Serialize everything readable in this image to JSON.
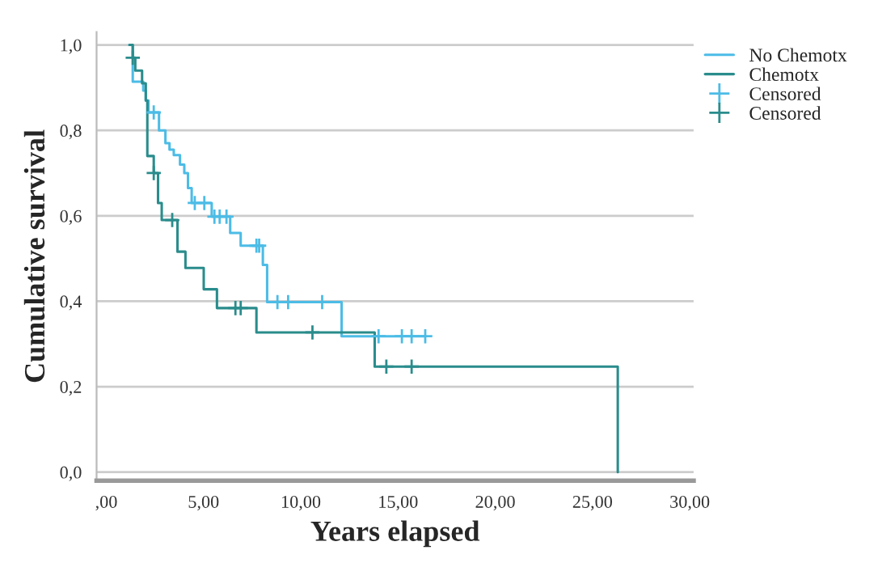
{
  "chart_data": {
    "type": "step",
    "xlabel": "Years elapsed",
    "ylabel": "Cumulative survival",
    "xlim": [
      -0.5,
      30.2
    ],
    "ylim": [
      -0.02,
      1.03
    ],
    "xticks": [
      {
        "value": 0,
        "label": ",00"
      },
      {
        "value": 5,
        "label": "5,00"
      },
      {
        "value": 10,
        "label": "10,00"
      },
      {
        "value": 15,
        "label": "15,00"
      },
      {
        "value": 20,
        "label": "20,00"
      },
      {
        "value": 25,
        "label": "25,00"
      },
      {
        "value": 30,
        "label": "30,00"
      }
    ],
    "yticks": [
      {
        "value": 0,
        "label": "0,0"
      },
      {
        "value": 0.2,
        "label": "0,2"
      },
      {
        "value": 0.4,
        "label": "0,4"
      },
      {
        "value": 0.6,
        "label": "0,6"
      },
      {
        "value": 0.8,
        "label": "0,8"
      },
      {
        "value": 1.0,
        "label": "1,0"
      }
    ],
    "grid": "y",
    "legend": "top right",
    "series": [
      {
        "name": "No Chemotx",
        "color": "#4cbce6",
        "x": [
          1.19,
          1.36,
          1.9,
          2.03,
          2.17,
          2.71,
          3.04,
          3.25,
          3.47,
          3.79,
          4.01,
          4.2,
          4.39,
          5.42,
          6.37,
          6.91,
          8.05,
          8.27,
          12.1,
          16.4
        ],
        "values": [
          1,
          0.914,
          0.893,
          0.87,
          0.842,
          0.8,
          0.77,
          0.755,
          0.742,
          0.72,
          0.7,
          0.665,
          0.63,
          0.598,
          0.56,
          0.53,
          0.485,
          0.398,
          0.318,
          0.318
        ]
      },
      {
        "name": "Chemotx",
        "color": "#2a8c8c",
        "x": [
          1.19,
          1.36,
          1.49,
          1.84,
          2.03,
          2.11,
          2.44,
          2.66,
          2.85,
          3.66,
          4.07,
          5.01,
          5.69,
          7.72,
          13.8,
          26.3
        ],
        "values": [
          1,
          0.97,
          0.94,
          0.91,
          0.87,
          0.74,
          0.7,
          0.63,
          0.59,
          0.516,
          0.478,
          0.428,
          0.384,
          0.327,
          0.247,
          0
        ]
      },
      {
        "name": "Censored",
        "type": "scatter",
        "marker": "cross",
        "color": "#4cbce6",
        "x": [
          2.44,
          4.55,
          5.04,
          5.56,
          5.83,
          6.18,
          7.72,
          7.86,
          8.8,
          9.35,
          11.1,
          14.0,
          15.2,
          15.7,
          16.4
        ],
        "values": [
          0.842,
          0.63,
          0.63,
          0.598,
          0.598,
          0.598,
          0.53,
          0.53,
          0.398,
          0.398,
          0.398,
          0.318,
          0.318,
          0.318,
          0.318
        ]
      },
      {
        "name": "Censored",
        "type": "scatter",
        "marker": "cross",
        "color": "#2a8c8c",
        "x": [
          1.36,
          2.44,
          3.39,
          6.64,
          6.91,
          10.6,
          14.4,
          15.7
        ],
        "values": [
          0.97,
          0.7,
          0.59,
          0.384,
          0.384,
          0.327,
          0.247,
          0.247
        ]
      }
    ]
  }
}
